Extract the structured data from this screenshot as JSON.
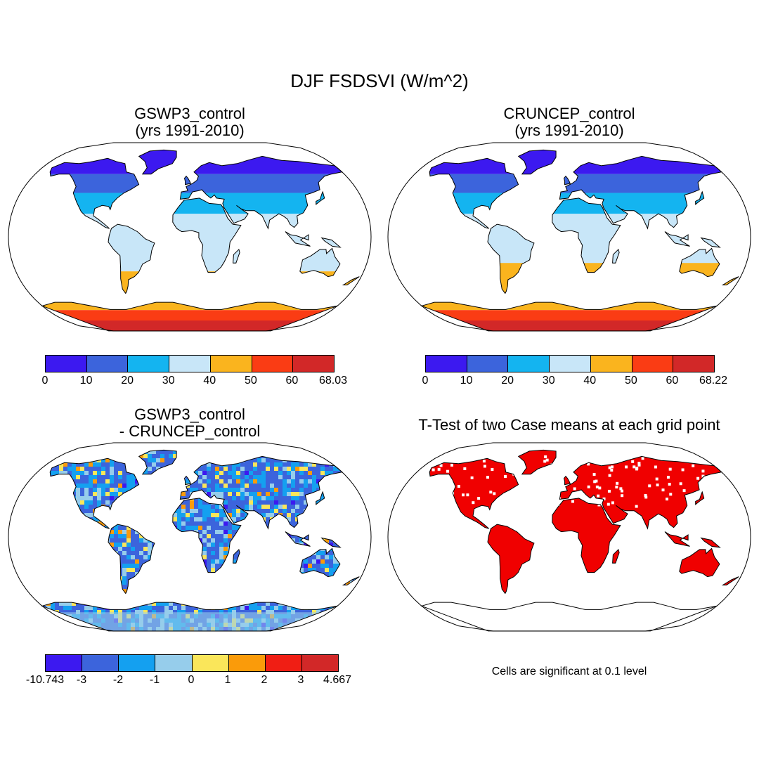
{
  "figure": {
    "title": "DJF FSDSVI (W/m^2)"
  },
  "panels": [
    {
      "title_line1": "GSWP3_control",
      "title_line2": "(yrs 1991-2010)",
      "colorbar": {
        "colors": [
          "#3c19f0",
          "#3c64dc",
          "#14b4f0",
          "#c8e6f8",
          "#fab41e",
          "#fa3c14",
          "#d22828"
        ],
        "ticks": [
          "0",
          "10",
          "20",
          "30",
          "40",
          "50",
          "60",
          "68.03"
        ]
      }
    },
    {
      "title_line1": "CRUNCEP_control",
      "title_line2": "(yrs 1991-2010)",
      "colorbar": {
        "colors": [
          "#3c19f0",
          "#3c64dc",
          "#14b4f0",
          "#c8e6f8",
          "#fab41e",
          "#fa3c14",
          "#d22828"
        ],
        "ticks": [
          "0",
          "10",
          "20",
          "30",
          "40",
          "50",
          "60",
          "68.22"
        ]
      }
    },
    {
      "title_line1": "GSWP3_control",
      "title_line2": "- CRUNCEP_control",
      "colorbar": {
        "colors": [
          "#3c19f0",
          "#3c64dc",
          "#14a0f0",
          "#96cdeb",
          "#fae65a",
          "#fa9b0a",
          "#f01e14",
          "#d22828"
        ],
        "ticks": [
          "-10.743",
          "-3",
          "-2",
          "-1",
          "0",
          "1",
          "2",
          "3",
          "4.667"
        ]
      }
    },
    {
      "title_line1": "T-Test of two Case means at each grid point",
      "note": "Cells are significant at 0.1 level",
      "significant_color": "#f00000"
    }
  ]
}
